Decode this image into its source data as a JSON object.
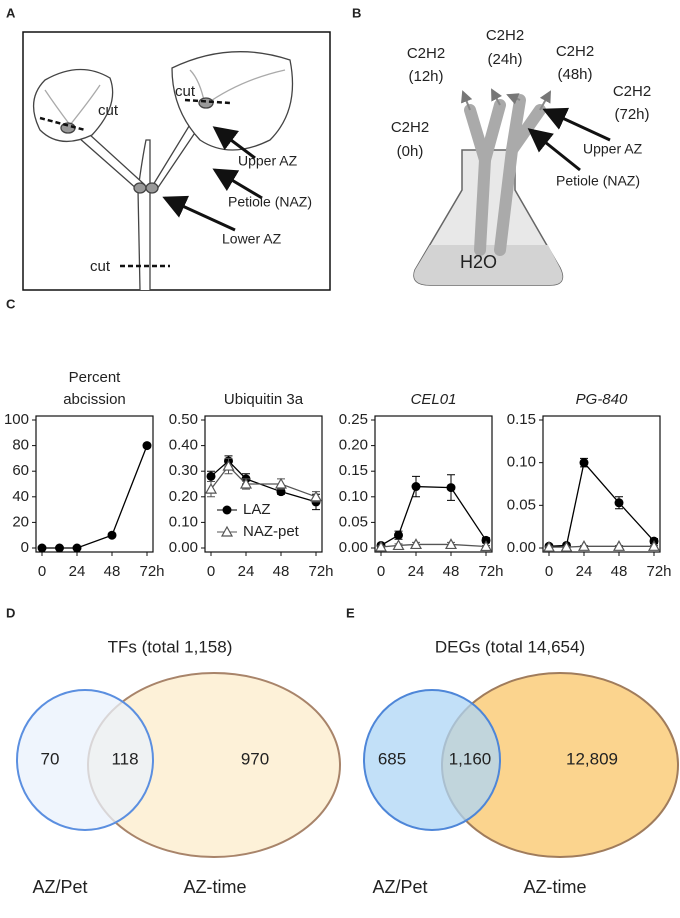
{
  "panel_a": {
    "letter": "A",
    "labels": [
      "cut",
      "cut",
      "Upper AZ",
      "Petiole (NAZ)",
      "Lower AZ",
      "cut"
    ]
  },
  "panel_b": {
    "letter": "B",
    "timepoints": [
      [
        "C2H2",
        "(0h)"
      ],
      [
        "C2H2",
        "(12h)"
      ],
      [
        "C2H2",
        "(24h)"
      ],
      [
        "C2H2",
        "(48h)"
      ],
      [
        "C2H2",
        "(72h)"
      ]
    ],
    "labels": [
      "Upper AZ",
      "Petiole (NAZ)"
    ],
    "water": "H2O"
  },
  "panel_c": {
    "letter": "C"
  },
  "chart_data": [
    {
      "type": "line",
      "title": [
        "Percent",
        "abcission"
      ],
      "x": [
        0,
        12,
        24,
        48,
        72
      ],
      "xlim": [
        0,
        72
      ],
      "xticks": [
        0,
        24,
        48,
        {
          "value": 72,
          "label": "72h"
        }
      ],
      "ylim": [
        0,
        100
      ],
      "yticks": [
        0,
        20,
        40,
        60,
        80,
        100
      ],
      "series": [
        {
          "color": "#000000",
          "marker": "circle",
          "values": [
            0,
            0,
            0,
            10,
            80
          ]
        }
      ]
    },
    {
      "type": "line",
      "title": [
        "Ubiquitin 3a"
      ],
      "x": [
        0,
        12,
        24,
        48,
        72
      ],
      "xlim": [
        0,
        72
      ],
      "xticks": [
        0,
        24,
        48,
        {
          "value": 72,
          "label": "72h"
        }
      ],
      "ylim": [
        0,
        0.5
      ],
      "yticks": [
        {
          "value": 0,
          "label": "0.00"
        },
        {
          "value": 0.1,
          "label": "0.10"
        },
        {
          "value": 0.2,
          "label": "0.20"
        },
        {
          "value": 0.3,
          "label": "0.30"
        },
        {
          "value": 0.4,
          "label": "0.40"
        },
        {
          "value": 0.5,
          "label": "0.50"
        }
      ],
      "legend": "lower left",
      "series": [
        {
          "name": "LAZ",
          "color": "#000000",
          "marker": "circle",
          "values": [
            0.28,
            0.34,
            0.27,
            0.22,
            0.18
          ],
          "errors": [
            0.02,
            0.02,
            0.02,
            0.01,
            0.03
          ]
        },
        {
          "name": "NAZ-pet",
          "color": "#555555",
          "marker": "triangle",
          "values": [
            0.23,
            0.32,
            0.25,
            0.25,
            0.2
          ],
          "errors": [
            0.03,
            0.03,
            0.02,
            0.02,
            0.02
          ]
        }
      ]
    },
    {
      "type": "line",
      "title": [
        "CEL01"
      ],
      "title_style": "italic",
      "x": [
        0,
        12,
        24,
        48,
        72
      ],
      "xlim": [
        0,
        72
      ],
      "xticks": [
        0,
        24,
        48,
        {
          "value": 72,
          "label": "72h"
        }
      ],
      "ylim": [
        0,
        0.25
      ],
      "yticks": [
        {
          "value": 0,
          "label": "0.00"
        },
        {
          "value": 0.05,
          "label": "0.05"
        },
        {
          "value": 0.1,
          "label": "0.10"
        },
        {
          "value": 0.15,
          "label": "0.15"
        },
        {
          "value": 0.2,
          "label": "0.20"
        },
        {
          "value": 0.25,
          "label": "0.25"
        }
      ],
      "series": [
        {
          "name": "LAZ",
          "color": "#000000",
          "marker": "circle",
          "values": [
            0.005,
            0.025,
            0.12,
            0.118,
            0.015
          ],
          "errors": [
            0.003,
            0.008,
            0.02,
            0.025,
            0.005
          ]
        },
        {
          "name": "NAZ-pet",
          "color": "#555555",
          "marker": "triangle",
          "values": [
            0.002,
            0.005,
            0.007,
            0.007,
            0.003
          ],
          "errors": [
            0.002,
            0.003,
            0.004,
            0.004,
            0.002
          ]
        }
      ]
    },
    {
      "type": "line",
      "title": [
        "PG-840"
      ],
      "title_style": "italic",
      "x": [
        0,
        12,
        24,
        48,
        72
      ],
      "xlim": [
        0,
        72
      ],
      "xticks": [
        0,
        24,
        48,
        {
          "value": 72,
          "label": "72h"
        }
      ],
      "ylim": [
        0,
        0.15
      ],
      "yticks": [
        {
          "value": 0,
          "label": "0.00"
        },
        {
          "value": 0.05,
          "label": "0.05"
        },
        {
          "value": 0.1,
          "label": "0.10"
        },
        {
          "value": 0.15,
          "label": "0.15"
        }
      ],
      "series": [
        {
          "name": "LAZ",
          "color": "#000000",
          "marker": "circle",
          "values": [
            0.002,
            0.003,
            0.1,
            0.053,
            0.008
          ],
          "errors": [
            0.002,
            0.002,
            0.005,
            0.007,
            0.003
          ]
        },
        {
          "name": "NAZ-pet",
          "color": "#555555",
          "marker": "triangle",
          "values": [
            0.001,
            0.001,
            0.002,
            0.002,
            0.002
          ],
          "errors": [
            0.001,
            0.001,
            0.001,
            0.001,
            0.001
          ]
        }
      ]
    }
  ],
  "venn": [
    {
      "letter": "D",
      "title": "TFs (total 1,158)",
      "sets": [
        "AZ/Pet",
        "AZ-time"
      ],
      "regions": [
        "70",
        "118",
        "970"
      ],
      "fills": [
        "#eaf2fc",
        "#fdf1d8"
      ],
      "strokes": [
        "#5b8fe0",
        "#a8846a"
      ]
    },
    {
      "letter": "E",
      "title": "DEGs (total 14,654)",
      "sets": [
        "AZ/Pet",
        "AZ-time"
      ],
      "regions": [
        "685",
        "1,160",
        "12,809"
      ],
      "fills": [
        "#aed5f5",
        "#fbd48e"
      ],
      "strokes": [
        "#4e86d8",
        "#a07c5c"
      ]
    }
  ]
}
